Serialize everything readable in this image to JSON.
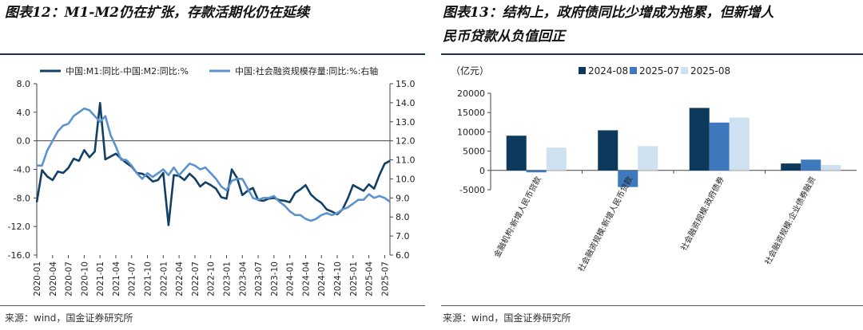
{
  "left": {
    "title": "图表12：M1-M2仍在扩张，存款活期化仍在延续",
    "source": "来源：wind，国金证券研究所",
    "chart_data": {
      "type": "line",
      "legend_placement": "top",
      "x": [
        "2020-01",
        "2020-02",
        "2020-03",
        "2020-04",
        "2020-05",
        "2020-06",
        "2020-07",
        "2020-08",
        "2020-09",
        "2020-10",
        "2020-11",
        "2020-12",
        "2021-01",
        "2021-02",
        "2021-03",
        "2021-04",
        "2021-05",
        "2021-06",
        "2021-07",
        "2021-08",
        "2021-09",
        "2021-10",
        "2021-11",
        "2021-12",
        "2022-01",
        "2022-02",
        "2022-03",
        "2022-04",
        "2022-05",
        "2022-06",
        "2022-07",
        "2022-08",
        "2022-09",
        "2022-10",
        "2022-11",
        "2022-12",
        "2023-01",
        "2023-02",
        "2023-03",
        "2023-04",
        "2023-05",
        "2023-06",
        "2023-07",
        "2023-08",
        "2023-09",
        "2023-10",
        "2023-11",
        "2023-12",
        "2024-01",
        "2024-02",
        "2024-03",
        "2024-04",
        "2024-05",
        "2024-06",
        "2024-07",
        "2024-08",
        "2024-09",
        "2024-10",
        "2024-11",
        "2024-12",
        "2025-01",
        "2025-02",
        "2025-03",
        "2025-04",
        "2025-05",
        "2025-06",
        "2025-07",
        "2025-08"
      ],
      "x_ticks": [
        "2020-01",
        "2020-04",
        "2020-07",
        "2020-10",
        "2021-01",
        "2021-04",
        "2021-07",
        "2021-10",
        "2022-01",
        "2022-04",
        "2022-07",
        "2022-10",
        "2023-01",
        "2023-04",
        "2023-07",
        "2023-10",
        "2024-01",
        "2024-04",
        "2024-07",
        "2024-10",
        "2025-01",
        "2025-04",
        "2025-07"
      ],
      "y_left": {
        "range": [
          -16.0,
          8.0
        ],
        "ticks": [
          "8.0",
          "4.0",
          "0.0",
          "-4.0",
          "-8.0",
          "-12.0",
          "-16.0"
        ]
      },
      "y_right": {
        "range": [
          6.0,
          15.0
        ],
        "ticks": [
          "15.0",
          "14.0",
          "13.0",
          "12.0",
          "11.0",
          "10.0",
          "9.0",
          "8.0",
          "7.0",
          "6.0"
        ]
      },
      "grid": false,
      "series": [
        {
          "name": "中国:M1:同比-中国:M2:同比:%",
          "axis": "left",
          "color": "#123f66",
          "values": [
            -8.6,
            -4.1,
            -5.0,
            -5.5,
            -4.3,
            -4.5,
            -3.8,
            -2.5,
            -2.8,
            -1.3,
            -2.3,
            -1.5,
            5.3,
            -2.6,
            -2.2,
            -1.8,
            -2.5,
            -3.1,
            -3.6,
            -4.5,
            -4.6,
            -5.0,
            -5.7,
            -5.5,
            -4.5,
            -11.8,
            -4.8,
            -4.9,
            -5.5,
            -4.6,
            -5.3,
            -6.4,
            -5.8,
            -6.2,
            -6.7,
            -7.9,
            -8.1,
            -4.0,
            -5.2,
            -7.6,
            -7.0,
            -6.6,
            -8.3,
            -8.4,
            -8.1,
            -8.0,
            -8.3,
            -8.4,
            -8.6,
            -7.3,
            -6.8,
            -6.2,
            -7.5,
            -8.2,
            -8.7,
            -9.6,
            -9.9,
            -10.3,
            -9.6,
            -8.1,
            -6.2,
            -6.6,
            -7.0,
            -6.1,
            -6.7,
            -4.8,
            -3.2,
            -2.8
          ]
        },
        {
          "name": "中国:社会融资规模存量:同比:%:右轴",
          "axis": "right",
          "color": "#5b93cf",
          "values": [
            10.7,
            10.7,
            11.5,
            12.0,
            12.5,
            12.8,
            12.9,
            13.3,
            13.5,
            13.7,
            13.6,
            13.3,
            13.0,
            13.3,
            12.3,
            11.7,
            11.0,
            11.0,
            10.7,
            10.3,
            10.0,
            10.3,
            10.1,
            10.3,
            10.5,
            10.2,
            10.6,
            10.2,
            10.5,
            10.8,
            10.7,
            10.5,
            10.6,
            10.3,
            10.0,
            9.6,
            9.4,
            9.9,
            10.0,
            10.0,
            9.5,
            9.0,
            8.9,
            9.0,
            9.0,
            9.1,
            8.8,
            8.6,
            8.3,
            8.1,
            8.1,
            7.9,
            7.8,
            7.9,
            8.1,
            8.2,
            8.1,
            8.2,
            8.4,
            8.5,
            8.7,
            8.9,
            8.9,
            9.2,
            9.0,
            9.1,
            9.0,
            8.8
          ]
        }
      ]
    }
  },
  "right": {
    "title_line1": "图表13：结构上，政府债同比少增成为拖累，但新增人",
    "title_line2": "民币贷款从负值回正",
    "source": "来源：wind，国金证券研究所",
    "chart_data": {
      "type": "bar",
      "unit": "（亿元）",
      "legend_placement": "top",
      "categories": [
        "金融机构:新增人民币贷款",
        "社会融资规模:新增人民币贷款",
        "社会融资规模:政府债券",
        "社会融资规模:企业债券融资"
      ],
      "y_range": [
        -5000,
        20000
      ],
      "y_ticks": [
        "20000",
        "15000",
        "10000",
        "5000",
        "0",
        "-5000"
      ],
      "grid": false,
      "series": [
        {
          "name": "2024-08",
          "color": "#0d3a5c",
          "values": [
            9000,
            10400,
            16200,
            1800
          ]
        },
        {
          "name": "2025-07",
          "color": "#3f79bd",
          "values": [
            -500,
            -4300,
            12400,
            2800
          ]
        },
        {
          "name": "2025-08",
          "color": "#cfe0f1",
          "values": [
            5900,
            6300,
            13700,
            1400
          ]
        }
      ]
    }
  }
}
